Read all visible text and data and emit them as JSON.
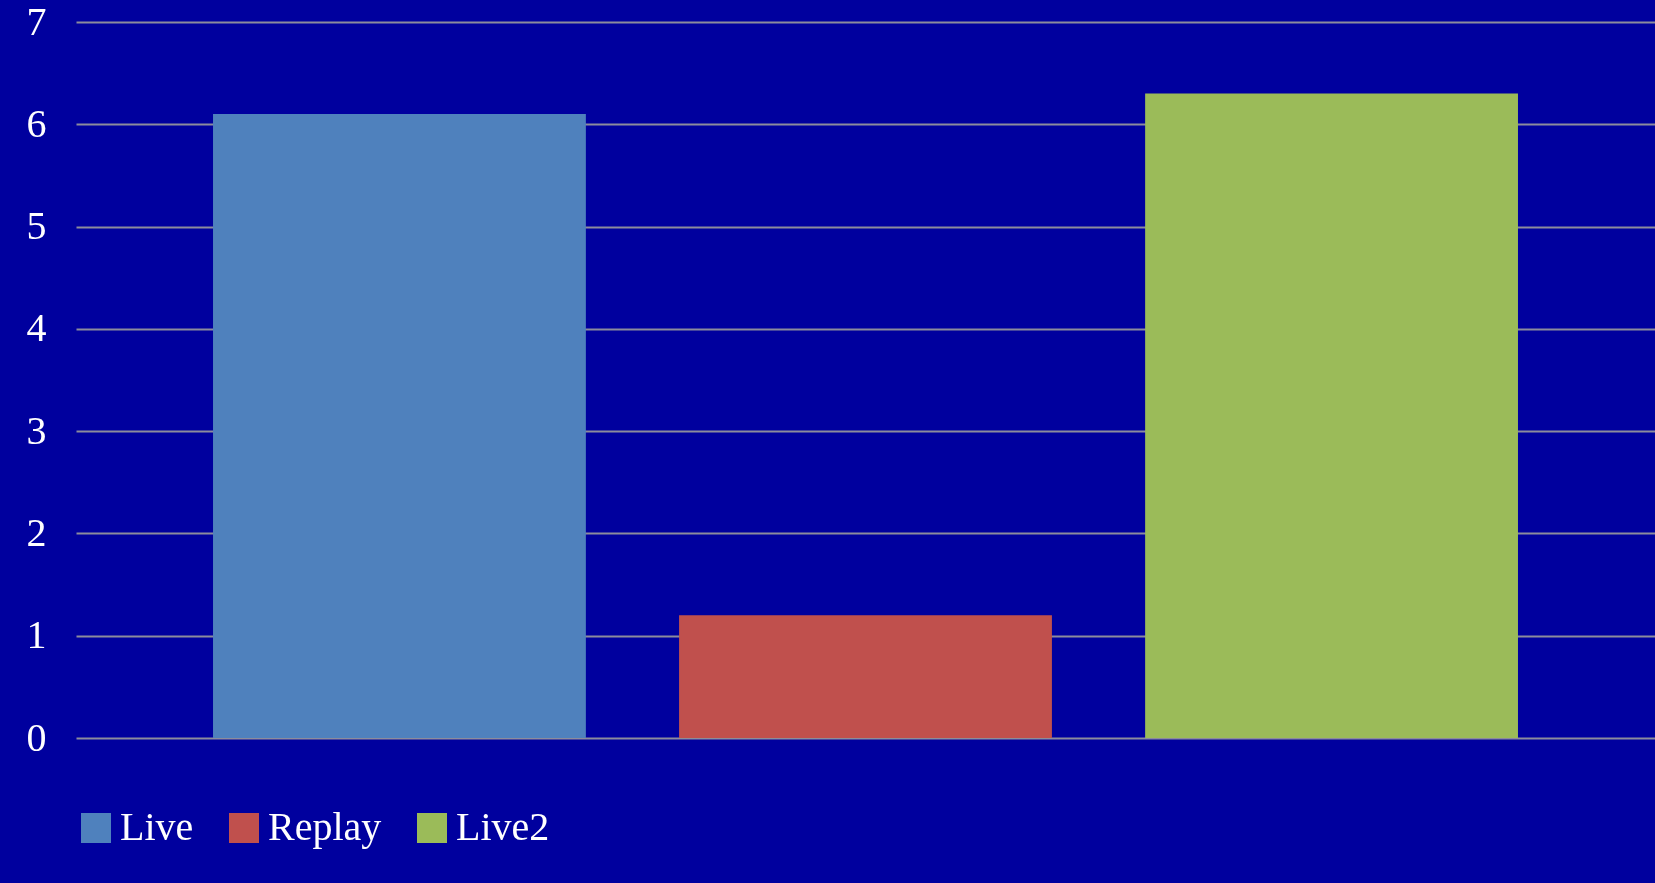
{
  "chart_data": {
    "type": "bar",
    "categories": [
      null
    ],
    "series": [
      {
        "name": "Live",
        "color": "#4f81bd",
        "values": [
          6.1
        ]
      },
      {
        "name": "Replay",
        "color": "#c0504d",
        "values": [
          1.2
        ]
      },
      {
        "name": "Live2",
        "color": "#9bbb59",
        "values": [
          6.3
        ]
      }
    ],
    "ylim": [
      0,
      7
    ],
    "yticks": [
      0,
      1,
      2,
      3,
      4,
      5,
      6,
      7
    ],
    "grid": "y",
    "legend": "bottom"
  }
}
